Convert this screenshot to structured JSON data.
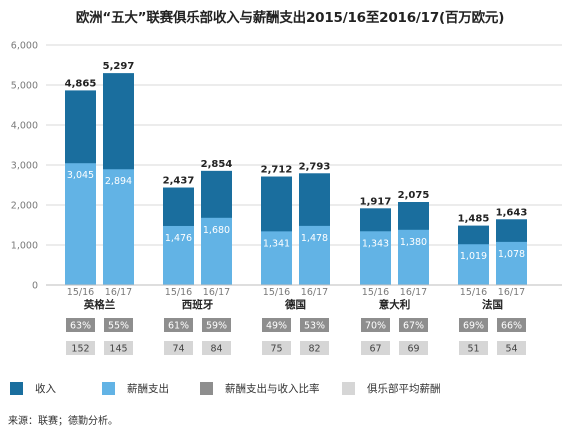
{
  "title": "欧洲“五大”联赛俱乐部收入与薪酬支出2015/16至2016/17(百万欧元)",
  "source": "来源：联赛；德勤分析。",
  "colors": {
    "revenue": "#1a6e9e",
    "wage": "#62b3e5",
    "ratio_box": "#8e8e8e",
    "avg_box": "#d6d6d6",
    "grid": "#d9d9d9",
    "axis_text": "#7a7a7a"
  },
  "legend": [
    {
      "label": "收入",
      "color_key": "revenue"
    },
    {
      "label": "薪酬支出",
      "color_key": "wage"
    },
    {
      "label": "薪酬支出与收入比率",
      "color_key": "ratio_box"
    },
    {
      "label": "俱乐部平均薪酬",
      "color_key": "avg_box"
    }
  ],
  "chart_data": {
    "type": "bar",
    "title": "欧洲“五大”联赛俱乐部收入与薪酬支出2015/16至2016/17(百万欧元)",
    "ylim": [
      0,
      6000
    ],
    "yticks": [
      "0",
      "1,000",
      "2,000",
      "3,000",
      "4,000",
      "5,000",
      "6,000"
    ],
    "ytick_values": [
      0,
      1000,
      2000,
      3000,
      4000,
      5000,
      6000
    ],
    "grid": true,
    "seasons": [
      "15/16",
      "16/17"
    ],
    "groups": [
      {
        "name": "英格兰",
        "revenue": [
          4865,
          5297
        ],
        "revenue_labels": [
          "4,865",
          "5,297"
        ],
        "wage": [
          3045,
          2894
        ],
        "wage_labels": [
          "3,045",
          "2,894"
        ],
        "ratio": [
          "63%",
          "55%"
        ],
        "avg": [
          "152",
          "145"
        ]
      },
      {
        "name": "西班牙",
        "revenue": [
          2437,
          2854
        ],
        "revenue_labels": [
          "2,437",
          "2,854"
        ],
        "wage": [
          1476,
          1680
        ],
        "wage_labels": [
          "1,476",
          "1,680"
        ],
        "ratio": [
          "61%",
          "59%"
        ],
        "avg": [
          "74",
          "84"
        ]
      },
      {
        "name": "德国",
        "revenue": [
          2712,
          2793
        ],
        "revenue_labels": [
          "2,712",
          "2,793"
        ],
        "wage": [
          1341,
          1478
        ],
        "wage_labels": [
          "1,341",
          "1,478"
        ],
        "ratio": [
          "49%",
          "53%"
        ],
        "avg": [
          "75",
          "82"
        ]
      },
      {
        "name": "意大利",
        "revenue": [
          1917,
          2075
        ],
        "revenue_labels": [
          "1,917",
          "2,075"
        ],
        "wage": [
          1343,
          1380
        ],
        "wage_labels": [
          "1,343",
          "1,380"
        ],
        "ratio": [
          "70%",
          "67%"
        ],
        "avg": [
          "67",
          "69"
        ]
      },
      {
        "name": "法国",
        "revenue": [
          1485,
          1643
        ],
        "revenue_labels": [
          "1,485",
          "1,643"
        ],
        "wage": [
          1019,
          1078
        ],
        "wage_labels": [
          "1,019",
          "1,078"
        ],
        "ratio": [
          "69%",
          "66%"
        ],
        "avg": [
          "51",
          "54"
        ]
      }
    ]
  }
}
